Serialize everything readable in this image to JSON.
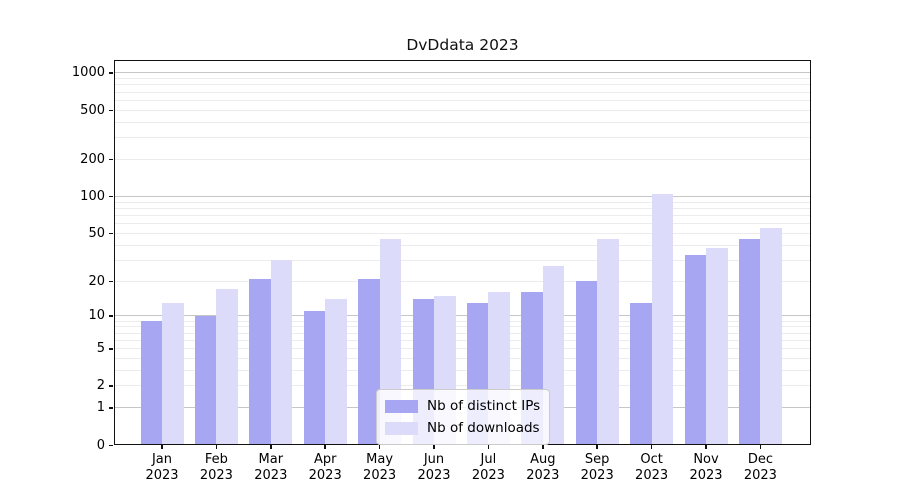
{
  "title": "DvDdata 2023",
  "colors": {
    "ips": "#a6a6f3",
    "downloads": "#dcdcfa",
    "grid_major": "#c6c6c6",
    "grid_minor": "#ececec",
    "axis": "#111111"
  },
  "legend": {
    "items": [
      {
        "label": "Nb of distinct IPs",
        "color_key": "ips"
      },
      {
        "label": "Nb of downloads",
        "color_key": "downloads"
      }
    ]
  },
  "y_axis": {
    "tick_values": [
      0,
      1,
      2,
      5,
      10,
      20,
      50,
      100,
      200,
      500,
      1000
    ],
    "tick_labels": [
      "0",
      "1",
      "2",
      "5",
      "10",
      "20",
      "50",
      "100",
      "200",
      "500",
      "1000"
    ]
  },
  "x_axis": {
    "tick_labels": [
      [
        "Jan",
        "2023"
      ],
      [
        "Feb",
        "2023"
      ],
      [
        "Mar",
        "2023"
      ],
      [
        "Apr",
        "2023"
      ],
      [
        "May",
        "2023"
      ],
      [
        "Jun",
        "2023"
      ],
      [
        "Jul",
        "2023"
      ],
      [
        "Aug",
        "2023"
      ],
      [
        "Sep",
        "2023"
      ],
      [
        "Oct",
        "2023"
      ],
      [
        "Nov",
        "2023"
      ],
      [
        "Dec",
        "2023"
      ]
    ]
  },
  "chart_data": {
    "type": "bar",
    "title": "DvDdata 2023",
    "categories": [
      "Jan 2023",
      "Feb 2023",
      "Mar 2023",
      "Apr 2023",
      "May 2023",
      "Jun 2023",
      "Jul 2023",
      "Aug 2023",
      "Sep 2023",
      "Oct 2023",
      "Nov 2023",
      "Dec 2023"
    ],
    "series": [
      {
        "name": "Nb of distinct IPs",
        "values": [
          9,
          10,
          21,
          11,
          21,
          14,
          13,
          16,
          20,
          13,
          33,
          45
        ]
      },
      {
        "name": "Nb of downloads",
        "values": [
          13,
          17,
          30,
          14,
          45,
          15,
          16,
          27,
          45,
          105,
          38,
          55
        ]
      }
    ],
    "xlabel": "",
    "ylabel": "",
    "yscale": "log1p",
    "ylim": [
      0,
      1260
    ],
    "yticks": [
      0,
      1,
      2,
      5,
      10,
      20,
      50,
      100,
      200,
      500,
      1000
    ],
    "grid": "horizontal",
    "legend_position": "lower center"
  }
}
